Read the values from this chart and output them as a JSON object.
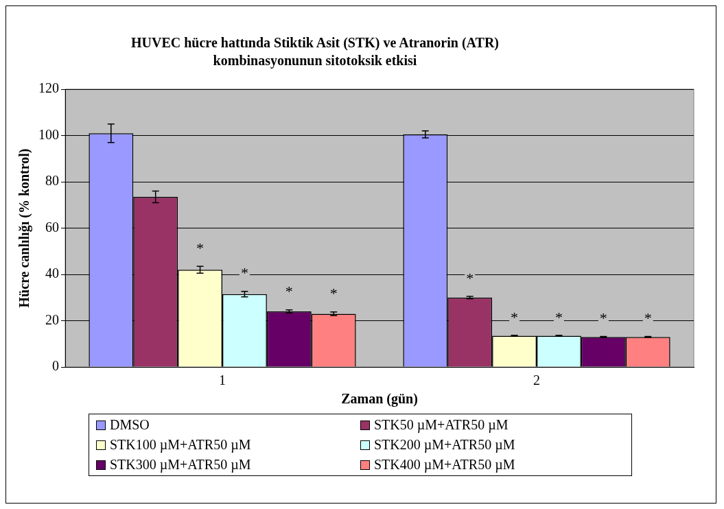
{
  "chart_data": {
    "type": "bar",
    "title": "HUVEC hücre hattında Stiktik Asit (STK) ve Atranorin (ATR) kombinasyonunun sitotoksik etkisi",
    "xlabel": "Zaman (gün)",
    "ylabel": "Hücre canlılığı (% kontrol)",
    "categories": [
      "1",
      "2"
    ],
    "series": [
      {
        "name": "DMSO",
        "color": "#9999ff",
        "values": [
          101,
          100.5
        ],
        "errors": [
          4,
          1.5
        ]
      },
      {
        "name": "STK50 µM+ATR50 µM",
        "color": "#993366",
        "values": [
          73.5,
          30
        ],
        "errors": [
          2.5,
          0.5
        ],
        "value_labels": [
          null,
          "*"
        ]
      },
      {
        "name": "STK100 µM+ATR50 µM",
        "color": "#ffffcc",
        "values": [
          42,
          13.5
        ],
        "errors": [
          1.5,
          0.2
        ],
        "value_labels": [
          "*",
          "*"
        ]
      },
      {
        "name": "STK200 µM+ATR50 µM",
        "color": "#ccffff",
        "values": [
          31.5,
          13.5
        ],
        "errors": [
          1.2,
          0.2
        ],
        "value_labels": [
          "*",
          "*"
        ]
      },
      {
        "name": "STK300 µM+ATR50 µM",
        "color": "#660066",
        "values": [
          24,
          13
        ],
        "errors": [
          0.7,
          0.2
        ],
        "value_labels": [
          "*",
          "*"
        ]
      },
      {
        "name": "STK400 µM+ATR50 µM",
        "color": "#ff8080",
        "values": [
          23,
          13
        ],
        "errors": [
          0.8,
          0.2
        ],
        "value_labels": [
          "*",
          "*"
        ]
      }
    ],
    "ylim": [
      0,
      120
    ],
    "yticks": [
      0,
      20,
      40,
      60,
      80,
      100,
      120
    ],
    "grid": "y",
    "legend": "bottom"
  }
}
